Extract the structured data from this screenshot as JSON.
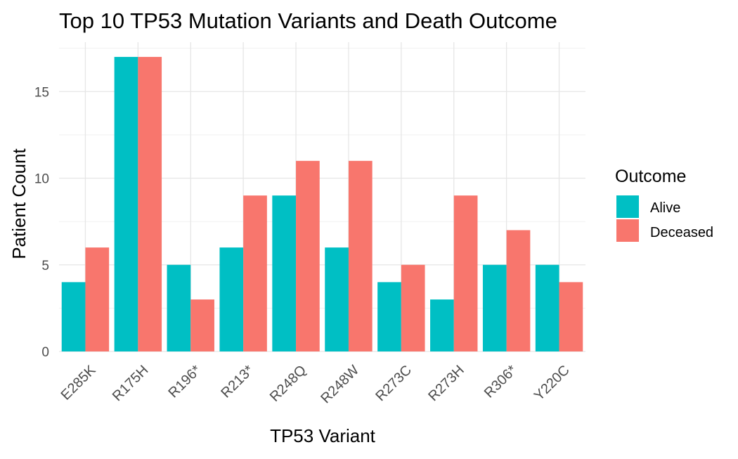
{
  "chart_data": {
    "type": "bar",
    "title": "Top 10 TP53 Mutation Variants and Death Outcome",
    "xlabel": "TP53 Variant",
    "ylabel": "Patient Count",
    "categories": [
      "E285K",
      "R175H",
      "R196*",
      "R213*",
      "R248Q",
      "R248W",
      "R273C",
      "R273H",
      "R306*",
      "Y220C"
    ],
    "series": [
      {
        "name": "Alive",
        "color": "#00BFC4",
        "values": [
          4,
          17,
          5,
          6,
          9,
          6,
          4,
          3,
          5,
          5
        ]
      },
      {
        "name": "Deceased",
        "color": "#F8766D",
        "values": [
          6,
          17,
          3,
          9,
          11,
          11,
          5,
          9,
          7,
          4
        ]
      }
    ],
    "ylim": [
      0,
      17.85
    ],
    "yticks": [
      0,
      5,
      10,
      15
    ],
    "ytick_labels": [
      "0",
      "5",
      "10",
      "15"
    ],
    "grid": true,
    "legend": {
      "title": "Outcome",
      "position": "right"
    }
  }
}
